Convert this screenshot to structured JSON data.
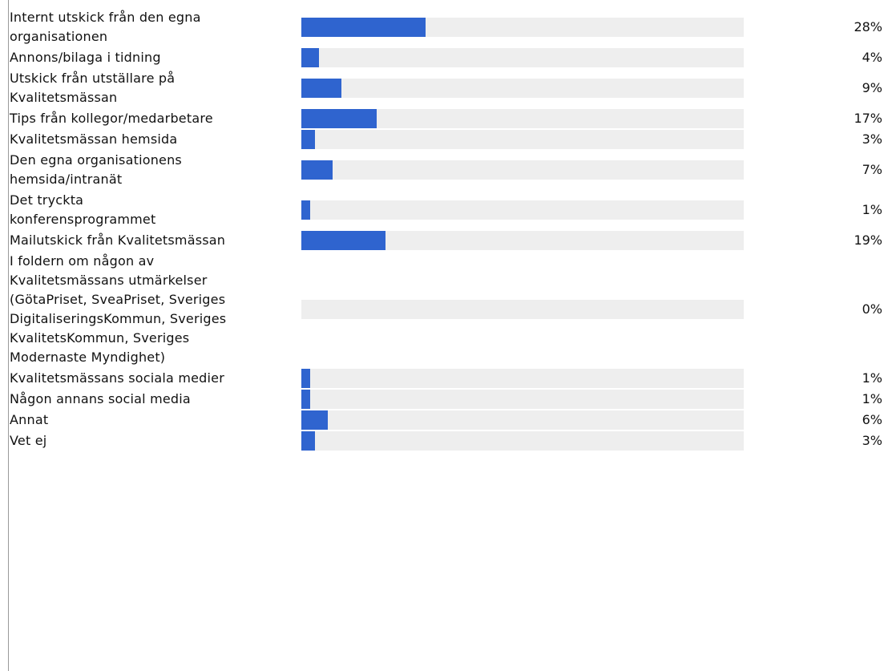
{
  "chart_data": {
    "type": "bar",
    "orientation": "horizontal",
    "bar_color": "#2f64cf",
    "track_color": "#eeeeee",
    "xlim": [
      0,
      100
    ],
    "rows": [
      {
        "label_lines": [
          "Internt utskick från den egna",
          "organisationen"
        ],
        "value": 28,
        "value_label": "28%"
      },
      {
        "label_lines": [
          "Annons/bilaga i tidning"
        ],
        "value": 4,
        "value_label": "4%"
      },
      {
        "label_lines": [
          "Utskick från utställare på",
          "Kvalitetsmässan"
        ],
        "value": 9,
        "value_label": "9%"
      },
      {
        "label_lines": [
          "Tips från kollegor/medarbetare"
        ],
        "value": 17,
        "value_label": "17%"
      },
      {
        "label_lines": [
          "Kvalitetsmässan hemsida"
        ],
        "value": 3,
        "value_label": "3%"
      },
      {
        "label_lines": [
          "Den egna organisationens",
          "hemsida/intranät"
        ],
        "value": 7,
        "value_label": "7%"
      },
      {
        "label_lines": [
          "Det tryckta",
          "konferensprogrammet"
        ],
        "value": 1,
        "value_label": "1%"
      },
      {
        "label_lines": [
          "Mailutskick från Kvalitetsmässan"
        ],
        "value": 19,
        "value_label": "19%"
      },
      {
        "label_lines": [
          "I foldern om någon av",
          "Kvalitetsmässans utmärkelser",
          "(GötaPriset, SveaPriset, Sveriges",
          "DigitaliseringsKommun, Sveriges",
          "KvalitetsKommun, Sveriges",
          "Modernaste Myndighet)"
        ],
        "value": 0,
        "value_label": "0%"
      },
      {
        "label_lines": [
          "Kvalitetsmässans sociala medier"
        ],
        "value": 1,
        "value_label": "1%"
      },
      {
        "label_lines": [
          "Någon annans social media"
        ],
        "value": 1,
        "value_label": "1%"
      },
      {
        "label_lines": [
          "Annat"
        ],
        "value": 6,
        "value_label": "6%"
      },
      {
        "label_lines": [
          "Vet ej"
        ],
        "value": 3,
        "value_label": "3%"
      }
    ]
  }
}
